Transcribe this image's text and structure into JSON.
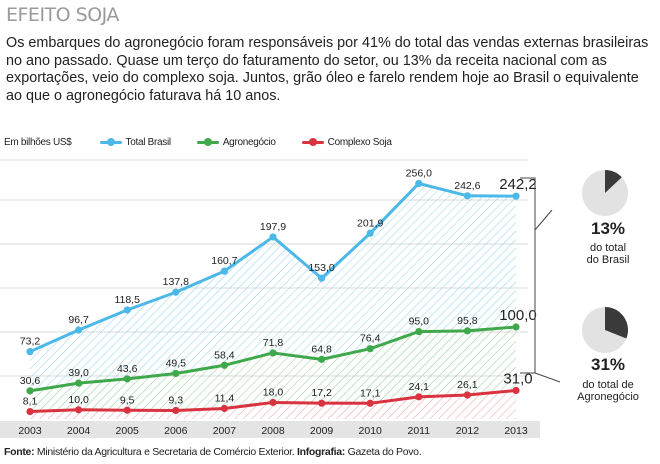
{
  "header": {
    "title": "EFEITO SOJA",
    "intro": "Os embarques do agronegócio foram responsáveis por 41% do total das vendas externas brasileiras no ano passado. Quase um terço do faturamento do setor, ou 13% da receita nacional com as exportações, veio do complexo soja. Juntos, grão óleo e farelo rendem hoje ao Brasil o equivalente ao que o agronegócio faturava há 10 anos."
  },
  "legend": {
    "unit": "Em bilhões US$",
    "items": [
      {
        "label": "Total Brasil",
        "color": "#4bb8e8"
      },
      {
        "label": "Agronegócio",
        "color": "#3fa84a"
      },
      {
        "label": "Complexo Soja",
        "color": "#d9333f"
      }
    ]
  },
  "chart_data": {
    "type": "line",
    "title": "EFEITO SOJA",
    "ylabel": "Em bilhões US$",
    "x": [
      "2003",
      "2004",
      "2005",
      "2006",
      "2007",
      "2008",
      "2009",
      "2010",
      "2011",
      "2012",
      "2013"
    ],
    "ylim": [
      0,
      270
    ],
    "series": [
      {
        "name": "Total Brasil",
        "color": "#4bb8e8",
        "values": [
          73.2,
          96.7,
          118.5,
          137.8,
          160.7,
          197.9,
          153.0,
          201.9,
          256.0,
          242.6,
          242.2
        ],
        "labels": [
          "73,2",
          "96,7",
          "118,5",
          "137,8",
          "160,7",
          "197,9",
          "153,0",
          "201,9",
          "256,0",
          "242,6",
          "242,2"
        ]
      },
      {
        "name": "Agronegócio",
        "color": "#3fa84a",
        "values": [
          30.6,
          39.0,
          43.6,
          49.5,
          58.4,
          71.8,
          64.8,
          76.4,
          95.0,
          95.8,
          100.0
        ],
        "labels": [
          "30,6",
          "39,0",
          "43,6",
          "49,5",
          "58,4",
          "71,8",
          "64,8",
          "76,4",
          "95,0",
          "95,8",
          "100,0"
        ]
      },
      {
        "name": "Complexo Soja",
        "color": "#d9333f",
        "values": [
          8.1,
          10.0,
          9.5,
          9.3,
          11.4,
          18.0,
          17.2,
          17.1,
          24.1,
          26.1,
          31.0
        ],
        "labels": [
          "8,1",
          "10,0",
          "9,5",
          "9,3",
          "11,4",
          "18,0",
          "17,2",
          "17,1",
          "24,1",
          "26,1",
          "31,0"
        ]
      }
    ]
  },
  "shares": [
    {
      "value": 13,
      "percent": "13%",
      "label_line1": "do total",
      "label_line2": "do Brasil"
    },
    {
      "value": 31,
      "percent": "31%",
      "label_line1": "do total de",
      "label_line2": "Agronegócio"
    }
  ],
  "source": {
    "label1": "Fonte:",
    "text1": " Ministério da Agricultura e Secretaria de Comércio Exterior. ",
    "label2": "Infografia:",
    "text2": " Gazeta do Povo."
  }
}
